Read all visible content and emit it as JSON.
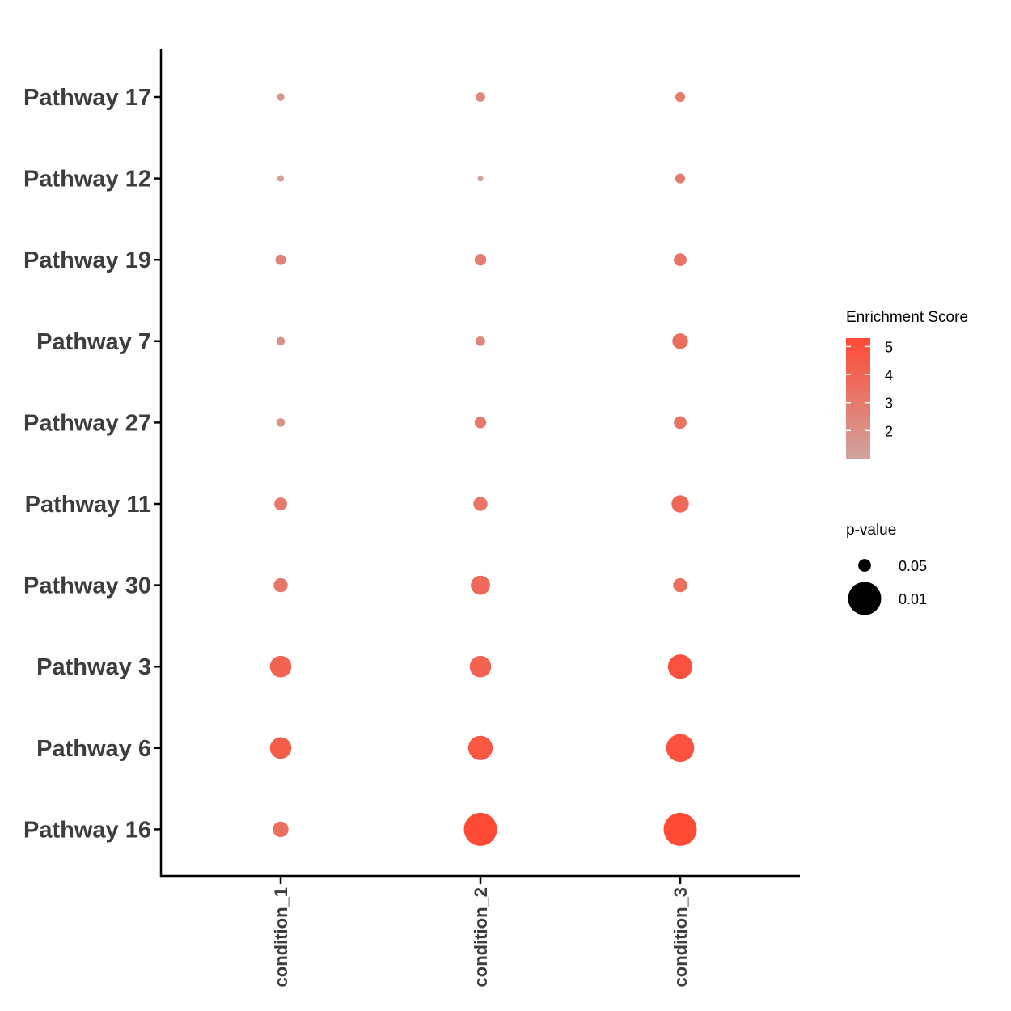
{
  "chart_data": {
    "type": "dot",
    "conditions": [
      "condition_1",
      "condition_2",
      "condition_3"
    ],
    "pathways": [
      "Pathway 17",
      "Pathway 12",
      "Pathway 19",
      "Pathway 7",
      "Pathway 27",
      "Pathway 11",
      "Pathway 30",
      "Pathway 3",
      "Pathway 6",
      "Pathway 16"
    ],
    "enrichment_score": [
      [
        1.7,
        2.4,
        2.9
      ],
      [
        1.3,
        1.0,
        2.9
      ],
      [
        2.6,
        2.8,
        3.3
      ],
      [
        1.8,
        2.3,
        3.6
      ],
      [
        1.8,
        3.0,
        3.3
      ],
      [
        3.0,
        3.3,
        3.9
      ],
      [
        3.1,
        3.8,
        3.6
      ],
      [
        4.1,
        4.1,
        4.9
      ],
      [
        4.4,
        4.7,
        4.9
      ],
      [
        3.5,
        5.3,
        5.3
      ]
    ],
    "p_value": [
      [
        0.075,
        0.065,
        0.063
      ],
      [
        0.082,
        0.088,
        0.063
      ],
      [
        0.06,
        0.055,
        0.05
      ],
      [
        0.07,
        0.065,
        0.04
      ],
      [
        0.07,
        0.055,
        0.05
      ],
      [
        0.05,
        0.045,
        0.035
      ],
      [
        0.045,
        0.03,
        0.045
      ],
      [
        0.025,
        0.025,
        0.02
      ],
      [
        0.025,
        0.02,
        0.015
      ],
      [
        0.04,
        0.01,
        0.01
      ]
    ],
    "color_legend": {
      "title": "Enrichment Score",
      "ticks": [
        "5",
        "4",
        "3",
        "2"
      ],
      "range": [
        1.0,
        5.3
      ],
      "low_color": "#cfa49c",
      "high_color": "#ff4a35"
    },
    "size_legend": {
      "title": "p-value",
      "entries": [
        "0.05",
        "0.01"
      ],
      "entry_values": [
        0.05,
        0.01
      ]
    },
    "grid": false
  }
}
